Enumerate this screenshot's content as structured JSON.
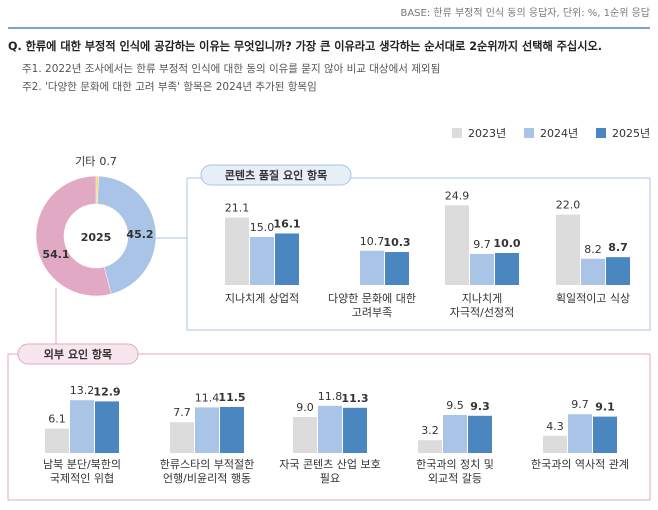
{
  "base": "BASE: 한류 부정적 인식 동의 응답자, 단위: %, 1순위 응답",
  "question": "Q. 한류에 대한 부정적 인식에 공감하는 이유는 무엇입니까? 가장 큰 이유라고 생각하는 순서대로 2순위까지 선택해 주십시오.",
  "notes": [
    "주1. 2022년 조사에서는 한류 부정적 인식에 대한 동의 이유를 묻지 않아 비교 대상에서 제외됨",
    "주2. '다양한 문화에 대한 고려 부족' 항목은 2024년 추가된 항목임"
  ],
  "chart_data": [
    {
      "type": "pie",
      "center_label": "2025",
      "slices": [
        {
          "label": "기타",
          "value": 0.7,
          "color": "#f3d36b"
        },
        {
          "value": 45.2,
          "color": "#a9c4e6"
        },
        {
          "value": 54.1,
          "color": "#e2a9c4"
        }
      ]
    },
    {
      "type": "bar",
      "title": "콘텐츠 품질 요인 항목",
      "series": [
        {
          "name": "2023년",
          "color": "#dcdcdc"
        },
        {
          "name": "2024년",
          "color": "#a9c4e6"
        },
        {
          "name": "2025년",
          "color": "#4a86c0"
        }
      ],
      "categories": [
        {
          "label_lines": [
            "지나치게 상업적"
          ],
          "values": [
            21.1,
            15.0,
            16.1
          ],
          "value_labels": [
            "21.1",
            "15.0",
            "16.1"
          ]
        },
        {
          "label_lines": [
            "다양한 문화에 대한",
            "고려부족"
          ],
          "values": [
            null,
            10.7,
            10.3
          ],
          "value_labels": [
            null,
            "10.7",
            "10.3"
          ]
        },
        {
          "label_lines": [
            "지나치게",
            "자극적/선정적"
          ],
          "values": [
            24.9,
            9.7,
            10.0
          ],
          "value_labels": [
            "24.9",
            "9.7",
            "10.0"
          ]
        },
        {
          "label_lines": [
            "획일적이고 식상"
          ],
          "values": [
            22.0,
            8.2,
            8.7
          ],
          "value_labels": [
            "22.0",
            "8.2",
            "8.7"
          ]
        }
      ]
    },
    {
      "type": "bar",
      "title": "외부 요인 항목",
      "categories": [
        {
          "label_lines": [
            "남북 분단/북한의",
            "국제적인 위협"
          ],
          "values": [
            6.1,
            13.2,
            12.9
          ],
          "value_labels": [
            "6.1",
            "13.2",
            "12.9"
          ]
        },
        {
          "label_lines": [
            "한류스타의 부적절한",
            "언행/비윤리적 행동"
          ],
          "values": [
            7.7,
            11.4,
            11.5
          ],
          "value_labels": [
            "7.7",
            "11.4",
            "11.5"
          ]
        },
        {
          "label_lines": [
            "자국 콘텐츠 산업 보호",
            "필요"
          ],
          "values": [
            9.0,
            11.8,
            11.3
          ],
          "value_labels": [
            "9.0",
            "11.8",
            "11.3"
          ]
        },
        {
          "label_lines": [
            "한국과의 정치 및",
            "외교적 갈등"
          ],
          "values": [
            3.2,
            9.5,
            9.3
          ],
          "value_labels": [
            "3.2",
            "9.5",
            "9.3"
          ]
        },
        {
          "label_lines": [
            "한국과의 역사적 관계"
          ],
          "values": [
            4.3,
            9.7,
            9.1
          ],
          "value_labels": [
            "4.3",
            "9.7",
            "9.1"
          ]
        }
      ]
    }
  ]
}
